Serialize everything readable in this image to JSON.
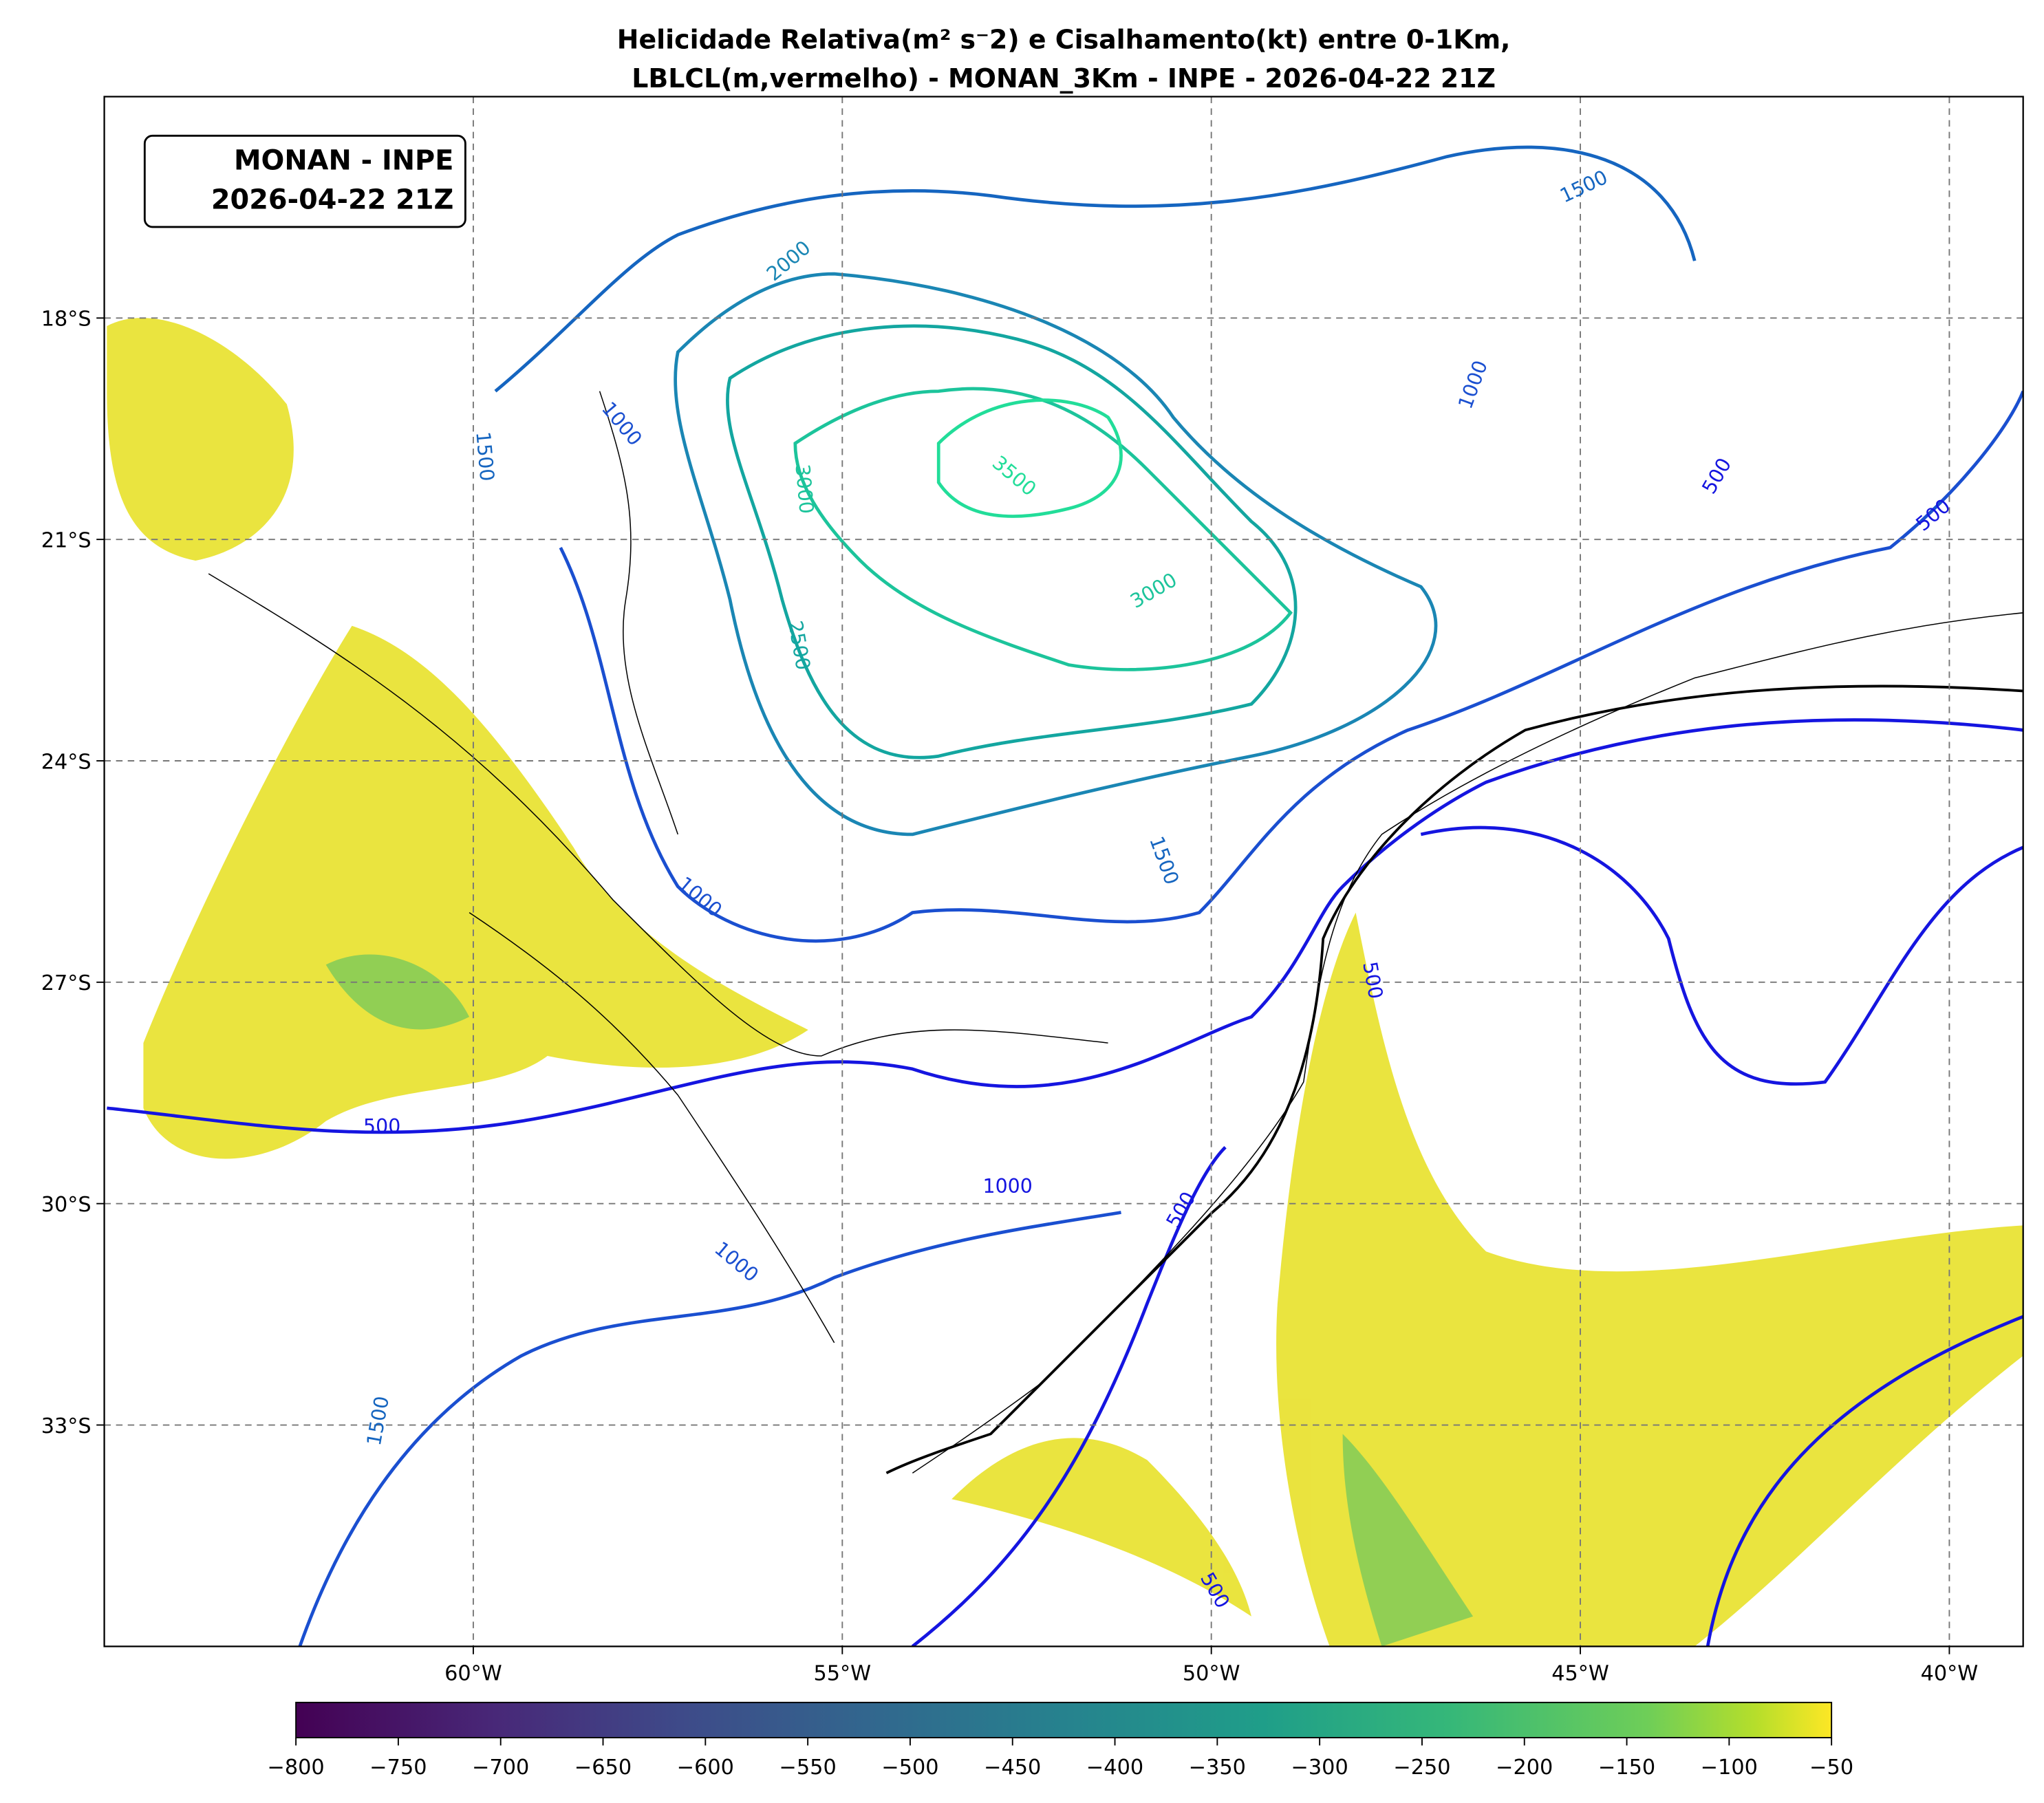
{
  "title": [
    "Helicidade Relativa(m² s⁻2) e Cisalhamento(kt) entre 0-1Km,",
    "LBLCL(m,vermelho) - MONAN_3Km - INPE - 2026-04-22 21Z"
  ],
  "info_box": [
    "MONAN - INPE",
    "2026-04-22 21Z"
  ],
  "map": {
    "xlim": [
      -65,
      -39
    ],
    "ylim": [
      -36,
      -15
    ],
    "xticks": [
      {
        "value": -60,
        "label": "60°W"
      },
      {
        "value": -55,
        "label": "55°W"
      },
      {
        "value": -50,
        "label": "50°W"
      },
      {
        "value": -45,
        "label": "45°W"
      },
      {
        "value": -40,
        "label": "40°W"
      }
    ],
    "yticks": [
      {
        "value": -18,
        "label": "18°S"
      },
      {
        "value": -21,
        "label": "21°S"
      },
      {
        "value": -24,
        "label": "24°S"
      },
      {
        "value": -27,
        "label": "27°S"
      },
      {
        "value": -30,
        "label": "30°S"
      },
      {
        "value": -33,
        "label": "33°S"
      }
    ],
    "contour_labels": [
      "2000",
      "1500",
      "1000",
      "1500",
      "3000",
      "3500",
      "3000",
      "2500",
      "1000",
      "500",
      "500",
      "1500",
      "1000",
      "500",
      "500",
      "1000",
      "1000",
      "500",
      "1500",
      "500"
    ]
  },
  "colorbar": {
    "lim": [
      -800,
      -50
    ],
    "ticks": [
      {
        "value": -800,
        "label": "−800"
      },
      {
        "value": -750,
        "label": "−750"
      },
      {
        "value": -700,
        "label": "−700"
      },
      {
        "value": -650,
        "label": "−650"
      },
      {
        "value": -600,
        "label": "−600"
      },
      {
        "value": -550,
        "label": "−550"
      },
      {
        "value": -500,
        "label": "−500"
      },
      {
        "value": -450,
        "label": "−450"
      },
      {
        "value": -400,
        "label": "−400"
      },
      {
        "value": -350,
        "label": "−350"
      },
      {
        "value": -300,
        "label": "−300"
      },
      {
        "value": -250,
        "label": "−250"
      },
      {
        "value": -200,
        "label": "−200"
      },
      {
        "value": -150,
        "label": "−150"
      },
      {
        "value": -100,
        "label": "−100"
      },
      {
        "value": -50,
        "label": "−50"
      }
    ]
  }
}
